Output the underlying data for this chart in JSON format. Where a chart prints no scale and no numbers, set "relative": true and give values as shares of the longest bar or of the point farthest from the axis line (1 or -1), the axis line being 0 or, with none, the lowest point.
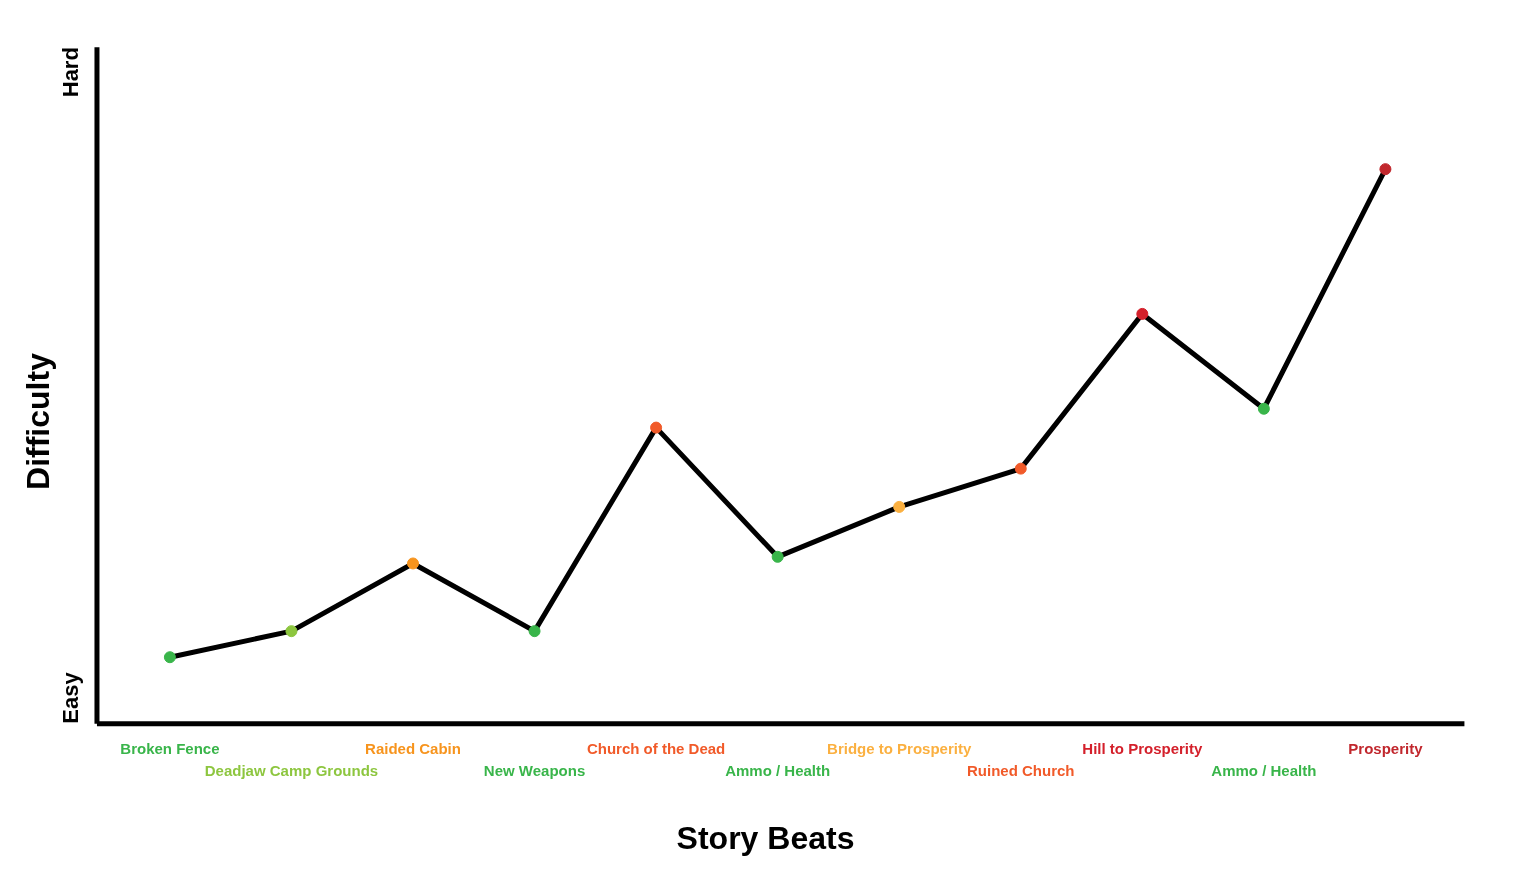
{
  "chart_data": {
    "type": "line",
    "relative": true,
    "xlabel": "Story Beats",
    "ylabel": "Difficulty",
    "categories": [
      "Broken Fence",
      "Deadjaw Camp Grounds",
      "Raided Cabin",
      "New Weapons",
      "Church of the Dead",
      "Ammo / Health",
      "Bridge to Prosperity",
      "Ruined Church",
      "Hill to Prosperity",
      "Ammo / Health",
      "Prosperity"
    ],
    "series": [
      {
        "color": "#000000",
        "values": [
          0.12,
          0.167,
          0.289,
          0.167,
          0.534,
          0.301,
          0.391,
          0.46,
          0.739,
          0.568,
          1.0
        ],
        "colors": [
          "#39b54a",
          "#8dc63f",
          "#f7941d",
          "#39b54a",
          "#f15a29",
          "#39b54a",
          "#fbb040",
          "#f15a29",
          "#d4202b",
          "#39b54a",
          "#c1272d"
        ]
      }
    ],
    "annotations": [
      "Easy",
      "Hard"
    ],
    "marker": "circle",
    "line_style": "solid",
    "grid": false
  }
}
